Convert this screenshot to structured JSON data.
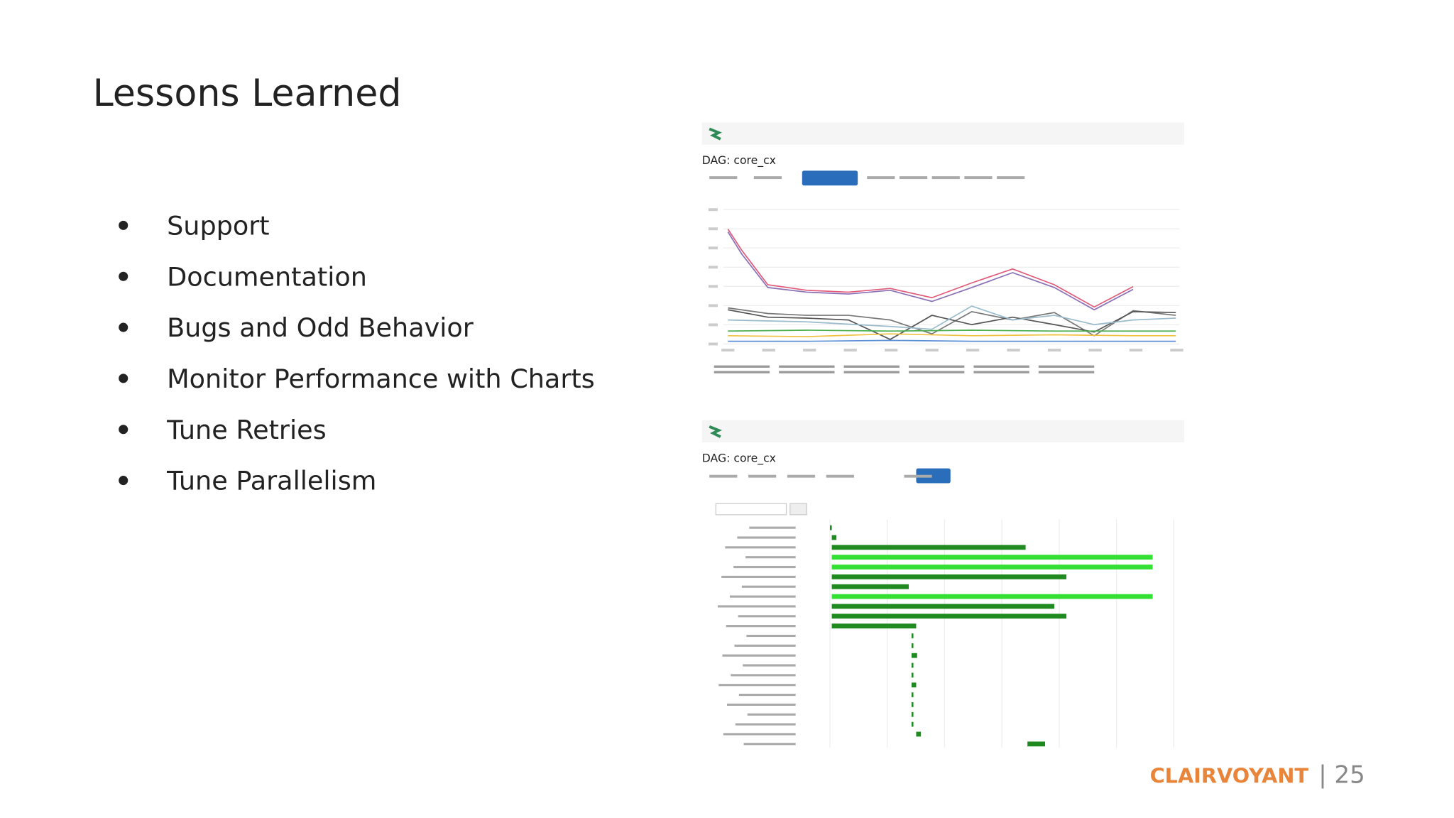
{
  "slide": {
    "title": "Lessons Learned",
    "bullets": [
      "Support",
      "Documentation",
      "Bugs and Odd Behavior",
      "Monitor Performance with Charts",
      "Tune Retries",
      "Tune Parallelism"
    ],
    "screenshots": [
      {
        "heading": "DAG: core_cx"
      },
      {
        "heading": "DAG: core_cx"
      }
    ],
    "footer": {
      "brand": "CLAIRVOYANT",
      "page_number": "| 25"
    }
  }
}
